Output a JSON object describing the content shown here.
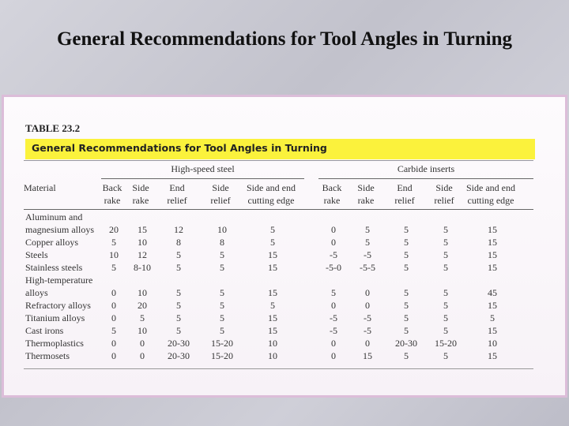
{
  "slide_title": "General Recommendations for Tool Angles in Turning",
  "table": {
    "label": "TABLE 23.2",
    "title": "General Recommendations for Tool Angles in Turning",
    "groups": [
      "High-speed steel",
      "Carbide inserts"
    ],
    "columns": [
      [
        "Material"
      ],
      [
        "Back",
        "rake"
      ],
      [
        "Side",
        "rake"
      ],
      [
        "End",
        "relief"
      ],
      [
        "Side",
        "relief"
      ],
      [
        "Side and end",
        "cutting edge"
      ],
      [
        "Back",
        "rake"
      ],
      [
        "Side",
        "rake"
      ],
      [
        "End",
        "relief"
      ],
      [
        "Side",
        "relief"
      ],
      [
        "Side and end",
        "cutting edge"
      ]
    ],
    "rows": [
      [
        "Aluminum and magnesium alloys",
        "20",
        "15",
        "12",
        "10",
        "5",
        "0",
        "5",
        "5",
        "5",
        "15"
      ],
      [
        "Copper alloys",
        "5",
        "10",
        "8",
        "8",
        "5",
        "0",
        "5",
        "5",
        "5",
        "15"
      ],
      [
        "Steels",
        "10",
        "12",
        "5",
        "5",
        "15",
        "-5",
        "-5",
        "5",
        "5",
        "15"
      ],
      [
        "Stainless steels",
        "5",
        "8-10",
        "5",
        "5",
        "15",
        "-5-0",
        "-5-5",
        "5",
        "5",
        "15"
      ],
      [
        "High-temperature alloys",
        "0",
        "10",
        "5",
        "5",
        "15",
        "5",
        "0",
        "5",
        "5",
        "45"
      ],
      [
        "Refractory alloys",
        "0",
        "20",
        "5",
        "5",
        "5",
        "0",
        "0",
        "5",
        "5",
        "15"
      ],
      [
        "Titanium alloys",
        "0",
        "5",
        "5",
        "5",
        "15",
        "-5",
        "-5",
        "5",
        "5",
        "5"
      ],
      [
        "Cast irons",
        "5",
        "10",
        "5",
        "5",
        "15",
        "-5",
        "-5",
        "5",
        "5",
        "15"
      ],
      [
        "Thermoplastics",
        "0",
        "0",
        "20-30",
        "15-20",
        "10",
        "0",
        "0",
        "20-30",
        "15-20",
        "10"
      ],
      [
        "Thermosets",
        "0",
        "0",
        "20-30",
        "15-20",
        "10",
        "0",
        "15",
        "5",
        "5",
        "15"
      ]
    ]
  }
}
